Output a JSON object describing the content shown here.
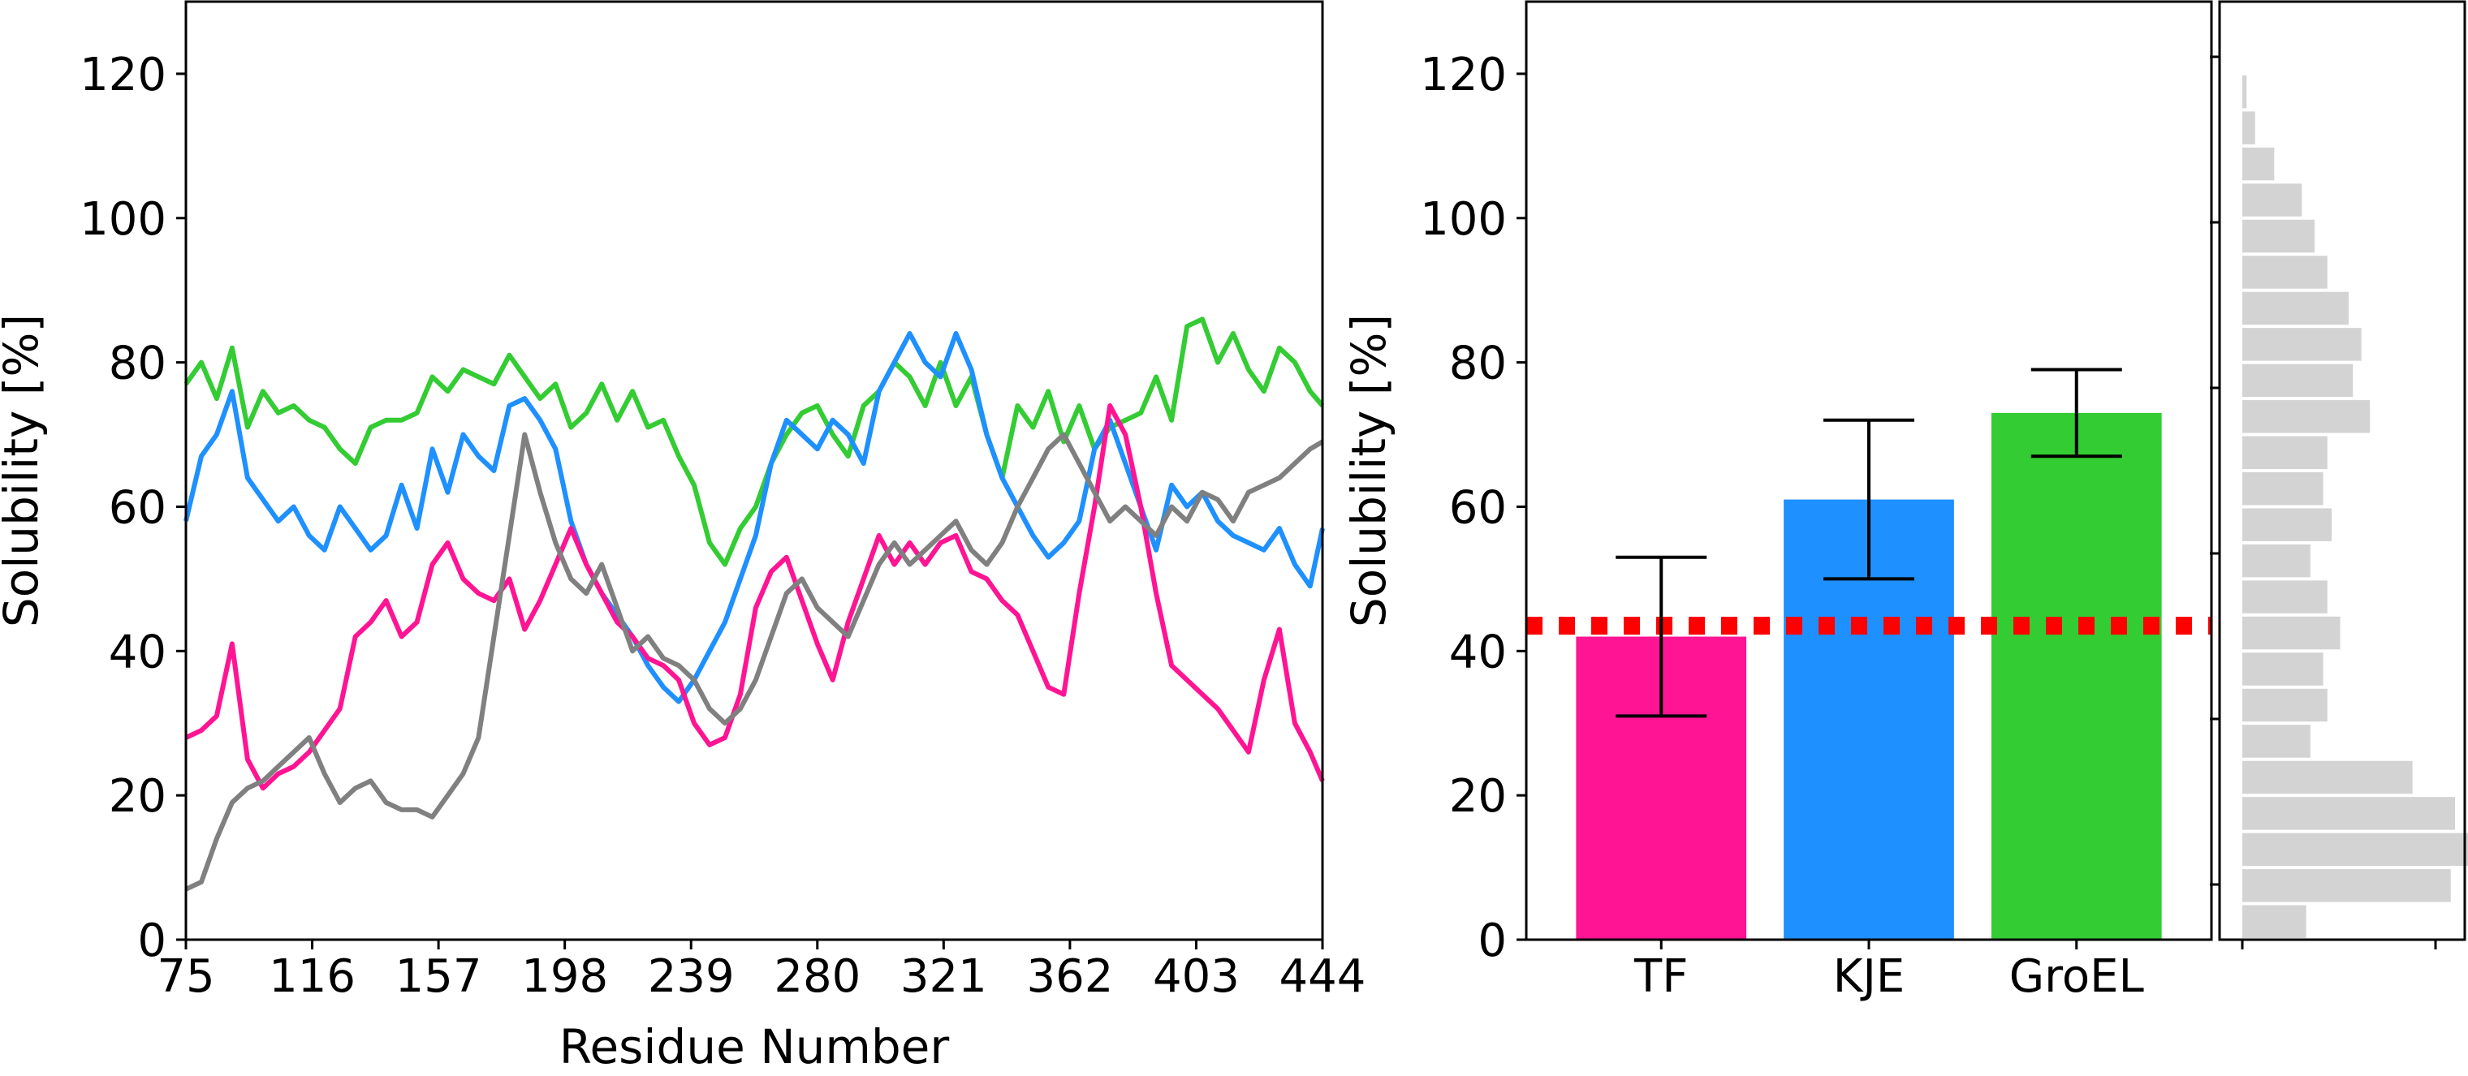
{
  "chart_data": [
    {
      "type": "line",
      "xlabel": "Residue Number",
      "ylabel": "Solubility [%]",
      "xlim": [
        75,
        444
      ],
      "ylim": [
        0,
        130
      ],
      "x_ticks": [
        75,
        116,
        157,
        198,
        239,
        280,
        321,
        362,
        403,
        444
      ],
      "y_ticks": [
        0,
        20,
        40,
        60,
        80,
        100,
        120
      ],
      "grid": false,
      "series": [
        {
          "color": "#33cc33",
          "x": [
            75,
            80,
            85,
            90,
            95,
            100,
            105,
            110,
            115,
            120,
            125,
            130,
            135,
            140,
            145,
            150,
            155,
            160,
            165,
            170,
            175,
            180,
            185,
            190,
            195,
            200,
            205,
            210,
            215,
            220,
            225,
            230,
            235,
            240,
            245,
            250,
            255,
            260,
            265,
            270,
            275,
            280,
            285,
            290,
            295,
            300,
            305,
            310,
            315,
            320,
            325,
            330,
            335,
            340,
            345,
            350,
            355,
            360,
            365,
            370,
            375,
            380,
            385,
            390,
            395,
            400,
            405,
            410,
            415,
            420,
            425,
            430,
            435,
            440,
            444
          ],
          "values": [
            77,
            80,
            75,
            82,
            71,
            76,
            73,
            74,
            72,
            71,
            68,
            66,
            71,
            72,
            72,
            73,
            78,
            76,
            79,
            78,
            77,
            81,
            78,
            75,
            77,
            71,
            73,
            77,
            72,
            76,
            71,
            72,
            67,
            63,
            55,
            52,
            57,
            60,
            66,
            70,
            73,
            74,
            70,
            67,
            74,
            76,
            80,
            78,
            74,
            80,
            74,
            78,
            70,
            64,
            74,
            71,
            76,
            69,
            74,
            68,
            71,
            72,
            73,
            78,
            72,
            85,
            86,
            80,
            84,
            79,
            76,
            82,
            80,
            76,
            74
          ]
        },
        {
          "color": "#1e90ff",
          "x": [
            75,
            80,
            85,
            90,
            95,
            100,
            105,
            110,
            115,
            120,
            125,
            130,
            135,
            140,
            145,
            150,
            155,
            160,
            165,
            170,
            175,
            180,
            185,
            190,
            195,
            200,
            205,
            210,
            215,
            220,
            225,
            230,
            235,
            240,
            245,
            250,
            255,
            260,
            265,
            270,
            275,
            280,
            285,
            290,
            295,
            300,
            305,
            310,
            315,
            320,
            325,
            330,
            335,
            340,
            345,
            350,
            355,
            360,
            365,
            370,
            375,
            380,
            385,
            390,
            395,
            400,
            405,
            410,
            415,
            420,
            425,
            430,
            435,
            440,
            444
          ],
          "values": [
            58,
            67,
            70,
            76,
            64,
            61,
            58,
            60,
            56,
            54,
            60,
            57,
            54,
            56,
            63,
            57,
            68,
            62,
            70,
            67,
            65,
            74,
            75,
            72,
            68,
            58,
            52,
            48,
            45,
            42,
            38,
            35,
            33,
            36,
            40,
            44,
            50,
            56,
            66,
            72,
            70,
            68,
            72,
            70,
            66,
            76,
            80,
            84,
            80,
            78,
            84,
            79,
            70,
            64,
            60,
            56,
            53,
            55,
            58,
            68,
            72,
            66,
            60,
            54,
            63,
            60,
            62,
            58,
            56,
            55,
            54,
            57,
            52,
            49,
            57
          ]
        },
        {
          "color": "#ff1493",
          "x": [
            75,
            80,
            85,
            90,
            95,
            100,
            105,
            110,
            115,
            120,
            125,
            130,
            135,
            140,
            145,
            150,
            155,
            160,
            165,
            170,
            175,
            180,
            185,
            190,
            195,
            200,
            205,
            210,
            215,
            220,
            225,
            230,
            235,
            240,
            245,
            250,
            255,
            260,
            265,
            270,
            275,
            280,
            285,
            290,
            295,
            300,
            305,
            310,
            315,
            320,
            325,
            330,
            335,
            340,
            345,
            350,
            355,
            360,
            365,
            370,
            375,
            380,
            385,
            390,
            395,
            400,
            405,
            410,
            415,
            420,
            425,
            430,
            435,
            440,
            444
          ],
          "values": [
            28,
            29,
            31,
            41,
            25,
            21,
            23,
            24,
            26,
            29,
            32,
            42,
            44,
            47,
            42,
            44,
            52,
            55,
            50,
            48,
            47,
            50,
            43,
            47,
            52,
            57,
            52,
            48,
            44,
            42,
            39,
            38,
            36,
            30,
            27,
            28,
            34,
            46,
            51,
            53,
            47,
            41,
            36,
            44,
            50,
            56,
            52,
            55,
            52,
            55,
            56,
            51,
            50,
            47,
            45,
            40,
            35,
            34,
            48,
            60,
            74,
            70,
            60,
            48,
            38,
            36,
            34,
            32,
            29,
            26,
            36,
            43,
            30,
            26,
            22
          ]
        },
        {
          "color": "#808080",
          "x": [
            75,
            80,
            85,
            90,
            95,
            100,
            105,
            110,
            115,
            120,
            125,
            130,
            135,
            140,
            145,
            150,
            155,
            160,
            165,
            170,
            175,
            180,
            185,
            190,
            195,
            200,
            205,
            210,
            215,
            220,
            225,
            230,
            235,
            240,
            245,
            250,
            255,
            260,
            265,
            270,
            275,
            280,
            285,
            290,
            295,
            300,
            305,
            310,
            315,
            320,
            325,
            330,
            335,
            340,
            345,
            350,
            355,
            360,
            365,
            370,
            375,
            380,
            385,
            390,
            395,
            400,
            405,
            410,
            415,
            420,
            425,
            430,
            435,
            440,
            444
          ],
          "values": [
            7,
            8,
            14,
            19,
            21,
            22,
            24,
            26,
            28,
            23,
            19,
            21,
            22,
            19,
            18,
            18,
            17,
            20,
            23,
            28,
            42,
            56,
            70,
            62,
            55,
            50,
            48,
            52,
            46,
            40,
            42,
            39,
            38,
            36,
            32,
            30,
            32,
            36,
            42,
            48,
            50,
            46,
            44,
            42,
            47,
            52,
            55,
            52,
            54,
            56,
            58,
            54,
            52,
            55,
            60,
            64,
            68,
            70,
            66,
            62,
            58,
            60,
            58,
            56,
            60,
            58,
            62,
            61,
            58,
            62,
            63,
            64,
            66,
            68,
            69
          ]
        }
      ]
    },
    {
      "type": "bar",
      "ylabel": "Solubility [%]",
      "ylim": [
        0,
        130
      ],
      "y_ticks": [
        0,
        20,
        40,
        60,
        80,
        100,
        120
      ],
      "categories": [
        "TF",
        "KJE",
        "GroEL"
      ],
      "values": [
        42,
        61,
        73
      ],
      "error_low": [
        31,
        50,
        67
      ],
      "error_high": [
        53,
        72,
        79
      ],
      "colors": [
        "#ff1493",
        "#1e90ff",
        "#33cc33"
      ],
      "reference_line": {
        "y": 43.5,
        "color": "#ff0000",
        "style": "dotted"
      },
      "grid": false
    },
    {
      "type": "bar",
      "orientation": "horizontal",
      "color": "#d3d3d3",
      "bin_width": 5,
      "bin_starts": [
        0,
        5,
        10,
        15,
        20,
        25,
        30,
        35,
        40,
        45,
        50,
        55,
        60,
        65,
        70,
        75,
        80,
        85,
        90,
        95,
        100,
        105,
        110,
        115,
        120
      ],
      "counts": [
        0.3,
        0.98,
        1.12,
        1.0,
        0.8,
        0.32,
        0.4,
        0.38,
        0.46,
        0.4,
        0.32,
        0.42,
        0.38,
        0.4,
        0.6,
        0.52,
        0.56,
        0.5,
        0.4,
        0.34,
        0.28,
        0.15,
        0.06,
        0.02,
        0.0
      ]
    }
  ]
}
